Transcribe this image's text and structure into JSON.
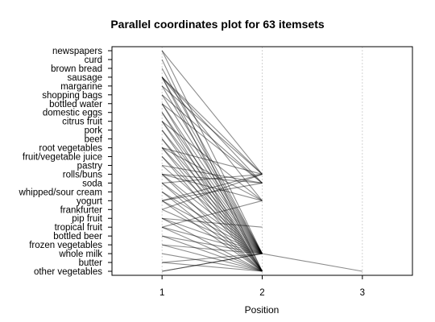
{
  "chart_data": {
    "type": "parallel-coordinates",
    "title": "Parallel coordinates plot for 63 itemsets",
    "xlabel": "Position",
    "x_ticks": [
      "1",
      "2",
      "3"
    ],
    "xlim": [
      0.5,
      3.5
    ],
    "grid": "vertical dotted lines at x = 2 and x = 3",
    "items": [
      "newspapers",
      "curd",
      "brown bread",
      "sausage",
      "margarine",
      "shopping bags",
      "bottled water",
      "domestic eggs",
      "citrus fruit",
      "pork",
      "beef",
      "root vegetables",
      "fruit/vegetable juice",
      "pastry",
      "rolls/buns",
      "soda",
      "whipped/sour cream",
      "yogurt",
      "frankfurter",
      "pip fruit",
      "tropical fruit",
      "bottled beer",
      "frozen vegetables",
      "whole milk",
      "butter",
      "other vegetables"
    ],
    "itemsets": [
      [
        "newspapers",
        "whole milk"
      ],
      [
        "curd",
        "other vegetables"
      ],
      [
        "brown bread",
        "whole milk"
      ],
      [
        "sausage",
        "rolls/buns"
      ],
      [
        "sausage",
        "whole milk"
      ],
      [
        "sausage",
        "other vegetables"
      ],
      [
        "sausage",
        "soda"
      ],
      [
        "margarine",
        "whole milk"
      ],
      [
        "shopping bags",
        "soda"
      ],
      [
        "bottled water",
        "soda"
      ],
      [
        "bottled water",
        "whole milk"
      ],
      [
        "bottled water",
        "other vegetables"
      ],
      [
        "domestic eggs",
        "whole milk"
      ],
      [
        "domestic eggs",
        "other vegetables"
      ],
      [
        "citrus fruit",
        "whole milk"
      ],
      [
        "citrus fruit",
        "other vegetables"
      ],
      [
        "pork",
        "other vegetables"
      ],
      [
        "pork",
        "whole milk"
      ],
      [
        "beef",
        "whole milk"
      ],
      [
        "beef",
        "other vegetables"
      ],
      [
        "root vegetables",
        "whole milk"
      ],
      [
        "root vegetables",
        "other vegetables"
      ],
      [
        "root vegetables",
        "rolls/buns"
      ],
      [
        "root vegetables",
        "yogurt"
      ],
      [
        "fruit/vegetable juice",
        "whole milk"
      ],
      [
        "fruit/vegetable juice",
        "other vegetables"
      ],
      [
        "pastry",
        "whole milk"
      ],
      [
        "pastry",
        "soda"
      ],
      [
        "rolls/buns",
        "whole milk"
      ],
      [
        "rolls/buns",
        "other vegetables"
      ],
      [
        "rolls/buns",
        "soda"
      ],
      [
        "rolls/buns",
        "yogurt"
      ],
      [
        "soda",
        "whole milk"
      ],
      [
        "soda",
        "other vegetables"
      ],
      [
        "soda",
        "rolls/buns"
      ],
      [
        "whipped/sour cream",
        "whole milk"
      ],
      [
        "whipped/sour cream",
        "other vegetables"
      ],
      [
        "yogurt",
        "whole milk"
      ],
      [
        "yogurt",
        "other vegetables"
      ],
      [
        "yogurt",
        "rolls/buns"
      ],
      [
        "yogurt",
        "soda"
      ],
      [
        "frankfurter",
        "whole milk"
      ],
      [
        "frankfurter",
        "rolls/buns"
      ],
      [
        "pip fruit",
        "whole milk"
      ],
      [
        "pip fruit",
        "other vegetables"
      ],
      [
        "pip fruit",
        "tropical fruit"
      ],
      [
        "tropical fruit",
        "whole milk"
      ],
      [
        "tropical fruit",
        "other vegetables"
      ],
      [
        "tropical fruit",
        "yogurt"
      ],
      [
        "bottled beer",
        "whole milk"
      ],
      [
        "bottled beer",
        "other vegetables"
      ],
      [
        "frozen vegetables",
        "whole milk"
      ],
      [
        "frozen vegetables",
        "other vegetables"
      ],
      [
        "whole milk",
        "other vegetables"
      ],
      [
        "butter",
        "whole milk"
      ],
      [
        "butter",
        "other vegetables"
      ],
      [
        "other vegetables",
        "whole milk"
      ],
      [
        "margarine",
        "rolls/buns"
      ],
      [
        "newspapers",
        "rolls/buns"
      ],
      [
        "sausage",
        "yogurt"
      ],
      [
        "shopping bags",
        "whole milk"
      ],
      [
        "citrus fruit",
        "yogurt"
      ],
      [
        "other vegetables",
        "whole milk",
        "other vegetables"
      ]
    ]
  }
}
